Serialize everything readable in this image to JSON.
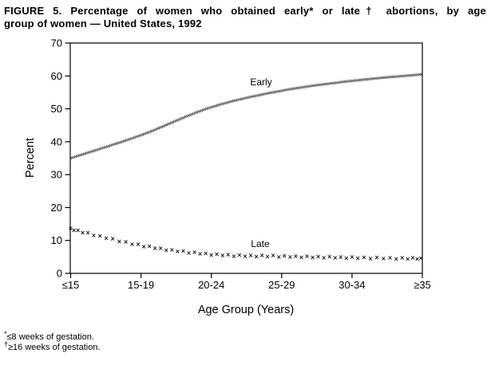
{
  "title": {
    "line1": "FIGURE 5. Percentage of women who obtained early* or late† abortions, by age",
    "line2": "group of women — United States, 1992"
  },
  "footnotes": [
    {
      "marker": "*",
      "text": "≤8 weeks of gestation."
    },
    {
      "marker": "†",
      "text": "≥16 weeks of gestation."
    }
  ],
  "chart_data": {
    "type": "line",
    "categories": [
      "≤15",
      "15-19",
      "20-24",
      "25-29",
      "30-34",
      "≥35"
    ],
    "series": [
      {
        "name": "Early",
        "style": "stippled-dotted-band",
        "values": [
          35,
          42,
          50.5,
          55.5,
          58.5,
          60.5
        ]
      },
      {
        "name": "Late",
        "style": "x-marker-band",
        "values": [
          13.5,
          8.5,
          5.8,
          5.2,
          4.8,
          4.5
        ]
      }
    ],
    "xlabel": "Age Group (Years)",
    "ylabel": "Percent",
    "ylim": [
      0,
      70
    ],
    "yticks": [
      0,
      10,
      20,
      30,
      40,
      50,
      60,
      70
    ],
    "grid": false,
    "legend": "inline-labels-next-to-lines",
    "frame": "full-box"
  }
}
